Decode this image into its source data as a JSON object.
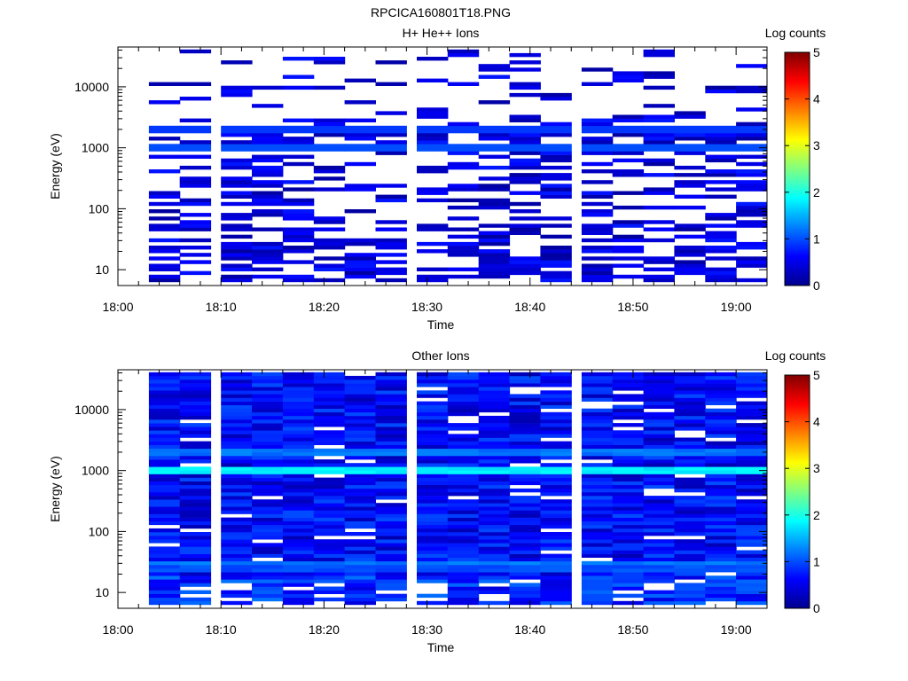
{
  "figure_title": "RPCICA160801T18.PNG",
  "chart_data": [
    {
      "type": "heatmap",
      "title": "H+ He++ Ions",
      "xlabel": "Time",
      "ylabel": "Energy (eV)",
      "y_scale": "log",
      "ylim": [
        5.5,
        45000
      ],
      "y_ticks": [
        10,
        100,
        1000,
        10000
      ],
      "y_tick_labels": [
        "10",
        "100",
        "1000",
        "10000"
      ],
      "xlim": [
        "18:00",
        "19:03"
      ],
      "x_ticks": [
        "18:00",
        "18:10",
        "18:20",
        "18:30",
        "18:40",
        "18:50",
        "19:00"
      ],
      "x_bins": [
        "18:03",
        "18:06",
        "18:10",
        "18:13",
        "18:16",
        "18:19",
        "18:22",
        "18:25",
        "18:29",
        "18:32",
        "18:35",
        "18:38",
        "18:41",
        "18:45",
        "18:48",
        "18:51",
        "18:54",
        "18:57",
        "19:00"
      ],
      "colorbar": {
        "label": "Log counts",
        "range": [
          0,
          5
        ],
        "ticks": [
          "0",
          "1",
          "2",
          "3",
          "4",
          "5"
        ]
      },
      "bands": [
        {
          "energy_eV": 1000,
          "log_counts": 1.0
        },
        {
          "energy_eV": 2000,
          "log_counts": 0.9
        }
      ],
      "sparse": true
    },
    {
      "type": "heatmap",
      "title": "Other Ions",
      "xlabel": "Time",
      "ylabel": "Energy (eV)",
      "y_scale": "log",
      "ylim": [
        5.5,
        45000
      ],
      "y_ticks": [
        10,
        100,
        1000,
        10000
      ],
      "y_tick_labels": [
        "10",
        "100",
        "1000",
        "10000"
      ],
      "xlim": [
        "18:00",
        "19:03"
      ],
      "x_ticks": [
        "18:00",
        "18:10",
        "18:20",
        "18:30",
        "18:40",
        "18:50",
        "19:00"
      ],
      "x_bins": [
        "18:03",
        "18:06",
        "18:10",
        "18:13",
        "18:16",
        "18:19",
        "18:22",
        "18:25",
        "18:29",
        "18:32",
        "18:35",
        "18:38",
        "18:41",
        "18:45",
        "18:48",
        "18:51",
        "18:54",
        "18:57",
        "19:00"
      ],
      "colorbar": {
        "label": "Log counts",
        "range": [
          0,
          5
        ],
        "ticks": [
          "0",
          "1",
          "2",
          "3",
          "4",
          "5"
        ]
      },
      "bands": [
        {
          "energy_eV": 1000,
          "log_counts": 1.9
        },
        {
          "energy_eV": 2000,
          "log_counts": 1.3
        },
        {
          "energy_eV": 30,
          "log_counts": 1.3
        },
        {
          "energy_eV": 25,
          "log_counts": 1.1
        }
      ],
      "sparse": false
    }
  ]
}
